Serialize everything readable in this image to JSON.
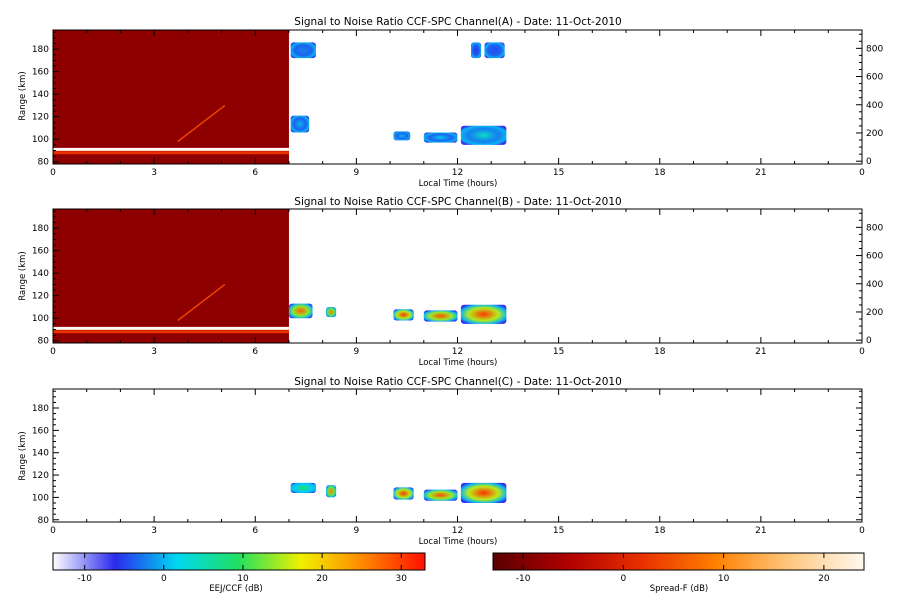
{
  "chart_data": [
    {
      "type": "heatmap",
      "title": "Signal to Noise Ratio CCF-SPC Channel(A) - Date: 11-Oct-2010",
      "xlabel": "Local Time (hours)",
      "ylabel": "Range (km)",
      "xlim": [
        0,
        24
      ],
      "ylim": [
        78,
        197
      ],
      "y2lim": [
        -20,
        930
      ],
      "xticks": [
        "0",
        "3",
        "6",
        "9",
        "12",
        "15",
        "18",
        "21",
        "0"
      ],
      "yticks": [
        "80",
        "100",
        "120",
        "140",
        "160",
        "180"
      ],
      "y2ticks": [
        "0",
        "200",
        "400",
        "600",
        "800"
      ],
      "spread_f_block": {
        "x": [
          0,
          7.0
        ],
        "range_km": [
          78,
          197
        ]
      },
      "spread_f_streaks": [
        {
          "x": [
            0,
            7.0
          ],
          "range_km": 91,
          "level": 1.0
        },
        {
          "x": [
            0,
            7.0
          ],
          "range_km": 88,
          "level": 0.4
        },
        {
          "x": [
            3.7,
            5.1
          ],
          "range_km": [
            98,
            130
          ],
          "level": 0.45
        }
      ],
      "eej_patches": [
        {
          "x": [
            7.05,
            7.8
          ],
          "range_km": [
            172,
            186
          ],
          "level": 0.25
        },
        {
          "x": [
            7.05,
            7.6
          ],
          "range_km": [
            106,
            121
          ],
          "level": 0.3
        },
        {
          "x": [
            10.1,
            10.6
          ],
          "range_km": [
            99,
            107
          ],
          "level": 0.3
        },
        {
          "x": [
            11.0,
            12.0
          ],
          "range_km": [
            97,
            106
          ],
          "level": 0.32
        },
        {
          "x": [
            12.1,
            13.45
          ],
          "range_km": [
            95,
            112
          ],
          "level": 0.38
        },
        {
          "x": [
            12.4,
            12.7
          ],
          "range_km": [
            172,
            186
          ],
          "level": 0.18
        },
        {
          "x": [
            12.8,
            13.4
          ],
          "range_km": [
            172,
            186
          ],
          "level": 0.2
        }
      ]
    },
    {
      "type": "heatmap",
      "title": "Signal to Noise Ratio CCF-SPC Channel(B) - Date: 11-Oct-2010",
      "xlabel": "Local Time (hours)",
      "ylabel": "Range (km)",
      "xlim": [
        0,
        24
      ],
      "ylim": [
        78,
        197
      ],
      "y2lim": [
        -20,
        930
      ],
      "xticks": [
        "0",
        "3",
        "6",
        "9",
        "12",
        "15",
        "18",
        "21",
        "0"
      ],
      "yticks": [
        "80",
        "100",
        "120",
        "140",
        "160",
        "180"
      ],
      "y2ticks": [
        "0",
        "200",
        "400",
        "600",
        "800"
      ],
      "spread_f_block": {
        "x": [
          0,
          7.0
        ],
        "range_km": [
          78,
          197
        ]
      },
      "spread_f_streaks": [
        {
          "x": [
            0,
            7.0
          ],
          "range_km": 91,
          "level": 1.0
        },
        {
          "x": [
            0,
            7.0
          ],
          "range_km": 88,
          "level": 0.4
        },
        {
          "x": [
            3.7,
            5.1
          ],
          "range_km": [
            98,
            130
          ],
          "level": 0.45
        }
      ],
      "eej_patches": [
        {
          "x": [
            7.0,
            7.7
          ],
          "range_km": [
            100,
            113
          ],
          "level": 0.9
        },
        {
          "x": [
            8.1,
            8.4
          ],
          "range_km": [
            101,
            110
          ],
          "level": 0.85
        },
        {
          "x": [
            10.1,
            10.7
          ],
          "range_km": [
            98,
            108
          ],
          "level": 0.95
        },
        {
          "x": [
            11.0,
            12.0
          ],
          "range_km": [
            97,
            107
          ],
          "level": 0.92
        },
        {
          "x": [
            12.1,
            13.45
          ],
          "range_km": [
            95,
            112
          ],
          "level": 0.95
        }
      ]
    },
    {
      "type": "heatmap",
      "title": "Signal to Noise Ratio CCF-SPC Channel(C) - Date: 11-Oct-2010",
      "xlabel": "Local Time (hours)",
      "ylabel": "Range (km)",
      "xlim": [
        0,
        24
      ],
      "ylim": [
        78,
        197
      ],
      "xticks": [
        "0",
        "3",
        "6",
        "9",
        "12",
        "15",
        "18",
        "21",
        "0"
      ],
      "yticks": [
        "80",
        "100",
        "120",
        "140",
        "160",
        "180"
      ],
      "eej_patches": [
        {
          "x": [
            7.05,
            7.8
          ],
          "range_km": [
            104,
            113
          ],
          "level": 0.5
        },
        {
          "x": [
            8.1,
            8.4
          ],
          "range_km": [
            100,
            111
          ],
          "level": 0.85
        },
        {
          "x": [
            10.1,
            10.7
          ],
          "range_km": [
            98,
            109
          ],
          "level": 0.95
        },
        {
          "x": [
            11.0,
            12.0
          ],
          "range_km": [
            97,
            107
          ],
          "level": 0.92
        },
        {
          "x": [
            12.1,
            13.45
          ],
          "range_km": [
            95,
            113
          ],
          "level": 0.96
        }
      ]
    }
  ],
  "colorbars": [
    {
      "label": "EEJ/CCF (dB)",
      "range": [
        -14,
        33
      ],
      "ticks": [
        "-10",
        "0",
        "10",
        "20",
        "30"
      ],
      "colormap": [
        "#ffffff",
        "#2a2aee",
        "#00d8f0",
        "#22e060",
        "#f0f000",
        "#ff8800",
        "#ff1000"
      ]
    },
    {
      "label": "Spread-F (dB)",
      "range": [
        -13,
        24
      ],
      "ticks": [
        "-10",
        "0",
        "10",
        "20"
      ],
      "colormap": [
        "#5a0000",
        "#b00000",
        "#e83000",
        "#ff8000",
        "#ffc880",
        "#fff8f0"
      ]
    }
  ]
}
